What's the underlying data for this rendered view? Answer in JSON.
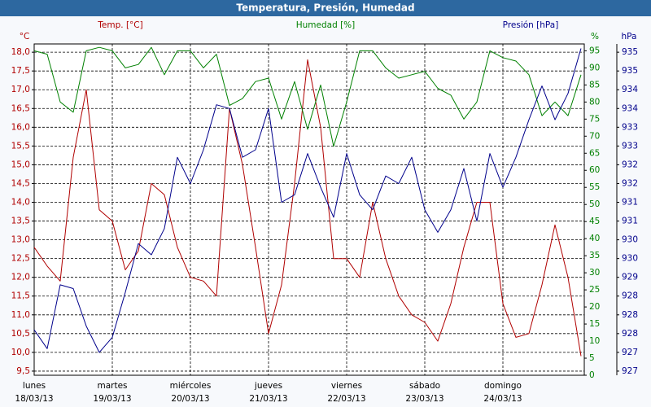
{
  "chart_data": {
    "type": "line",
    "title": "Temperatura, Presión, Humedad",
    "x": [
      0,
      4,
      8,
      12,
      16,
      20,
      24,
      28,
      32,
      36,
      40,
      44,
      48,
      52,
      56,
      60,
      64,
      68,
      72,
      76,
      80,
      84,
      88,
      92,
      96,
      100,
      104,
      108,
      112,
      116,
      120,
      124,
      128,
      132,
      136,
      140,
      144,
      148,
      152,
      156,
      160,
      164,
      168
    ],
    "xlim": [
      0,
      169
    ],
    "xticks": [
      {
        "value": 0,
        "label": "lunes"
      },
      {
        "value": 24,
        "label": "martes"
      },
      {
        "value": 48,
        "label": "miércoles"
      },
      {
        "value": 72,
        "label": "jueves"
      },
      {
        "value": 96,
        "label": "viernes"
      },
      {
        "value": 120,
        "label": "sábado"
      },
      {
        "value": 144,
        "label": "domingo"
      }
    ],
    "xtick_dates": [
      "18/03/13",
      "19/03/13",
      "20/03/13",
      "21/03/13",
      "22/03/13",
      "23/03/13",
      "24/03/13"
    ],
    "yunit": "°C",
    "y2unit": "%",
    "y3unit": "hPa",
    "ylim": [
      9.39,
      18.22
    ],
    "yticks": [
      {
        "value": 9.5,
        "label": "9,5"
      },
      {
        "value": 10,
        "label": "10,0"
      },
      {
        "value": 10.5,
        "label": "10,5"
      },
      {
        "value": 11,
        "label": "11,0"
      },
      {
        "value": 11.5,
        "label": "11,5"
      },
      {
        "value": 12,
        "label": "12,0"
      },
      {
        "value": 12.5,
        "label": "12,5"
      },
      {
        "value": 13,
        "label": "13,0"
      },
      {
        "value": 13.5,
        "label": "13,5"
      },
      {
        "value": 14,
        "label": "14,0"
      },
      {
        "value": 14.5,
        "label": "14,5"
      },
      {
        "value": 15,
        "label": "15,0"
      },
      {
        "value": 15.5,
        "label": "15,5"
      },
      {
        "value": 16,
        "label": "16,0"
      },
      {
        "value": 16.5,
        "label": "16,5"
      },
      {
        "value": 17,
        "label": "17,0"
      },
      {
        "value": 17.5,
        "label": "17,5"
      },
      {
        "value": 18,
        "label": "18,0"
      }
    ],
    "y2lim": [
      0,
      97
    ],
    "y2ticks": [
      0,
      5,
      10,
      15,
      20,
      25,
      30,
      35,
      40,
      45,
      50,
      55,
      60,
      65,
      70,
      75,
      80,
      85,
      90,
      95
    ],
    "y3lim": [
      926.49,
      935.32
    ],
    "y3ticks": [
      {
        "value": 926.6,
        "label": "927"
      },
      {
        "value": 927.1,
        "label": "927"
      },
      {
        "value": 927.6,
        "label": "928"
      },
      {
        "value": 928.1,
        "label": "928"
      },
      {
        "value": 928.6,
        "label": "928"
      },
      {
        "value": 929.1,
        "label": "929"
      },
      {
        "value": 929.6,
        "label": "930"
      },
      {
        "value": 930.1,
        "label": "930"
      },
      {
        "value": 930.6,
        "label": "931"
      },
      {
        "value": 931.1,
        "label": "931"
      },
      {
        "value": 931.6,
        "label": "932"
      },
      {
        "value": 932.1,
        "label": "932"
      },
      {
        "value": 932.6,
        "label": "933"
      },
      {
        "value": 933.1,
        "label": "933"
      },
      {
        "value": 933.6,
        "label": "934"
      },
      {
        "value": 934.1,
        "label": "934"
      },
      {
        "value": 934.6,
        "label": "935"
      },
      {
        "value": 935.1,
        "label": "935"
      }
    ],
    "grid": true,
    "series": [
      {
        "name": "Temp. [°C]",
        "color": "#b00000",
        "axis": "y",
        "values": [
          12.8,
          12.3,
          11.9,
          15.2,
          17.0,
          13.8,
          13.5,
          12.2,
          12.7,
          14.5,
          14.2,
          12.8,
          12.0,
          11.9,
          11.5,
          16.5,
          15.0,
          12.8,
          10.5,
          11.8,
          14.5,
          17.8,
          16.0,
          12.5,
          12.5,
          12.0,
          14.0,
          12.5,
          11.5,
          11.0,
          10.8,
          10.3,
          11.3,
          12.8,
          14.0,
          14.0,
          11.3,
          10.4,
          10.5,
          11.8,
          13.4,
          12.0,
          9.9
        ]
      },
      {
        "name": "Humedad [%]",
        "color": "#008000",
        "axis": "y2",
        "values": [
          95,
          94,
          80,
          77,
          95,
          96,
          95,
          90,
          91,
          96,
          88,
          95,
          95,
          90,
          94,
          79,
          81,
          86,
          87,
          75,
          86,
          72,
          85,
          67,
          80,
          95,
          95,
          90,
          87,
          88,
          89,
          84,
          82,
          75,
          80,
          95,
          93,
          92,
          88,
          76,
          80,
          76,
          88
        ]
      },
      {
        "name": "Presión [hPa]",
        "color": "#00008b",
        "axis": "y3",
        "values": [
          927.7,
          927.2,
          928.9,
          928.8,
          927.8,
          927.1,
          927.5,
          928.7,
          930.0,
          929.7,
          930.4,
          932.3,
          931.6,
          932.5,
          933.7,
          933.6,
          932.3,
          932.5,
          933.6,
          931.1,
          931.3,
          932.4,
          931.5,
          930.7,
          932.4,
          931.3,
          930.9,
          931.8,
          931.6,
          932.3,
          930.9,
          930.3,
          930.9,
          932.0,
          930.6,
          932.4,
          931.5,
          932.3,
          933.3,
          934.2,
          933.3,
          934.0,
          935.2
        ]
      }
    ]
  }
}
